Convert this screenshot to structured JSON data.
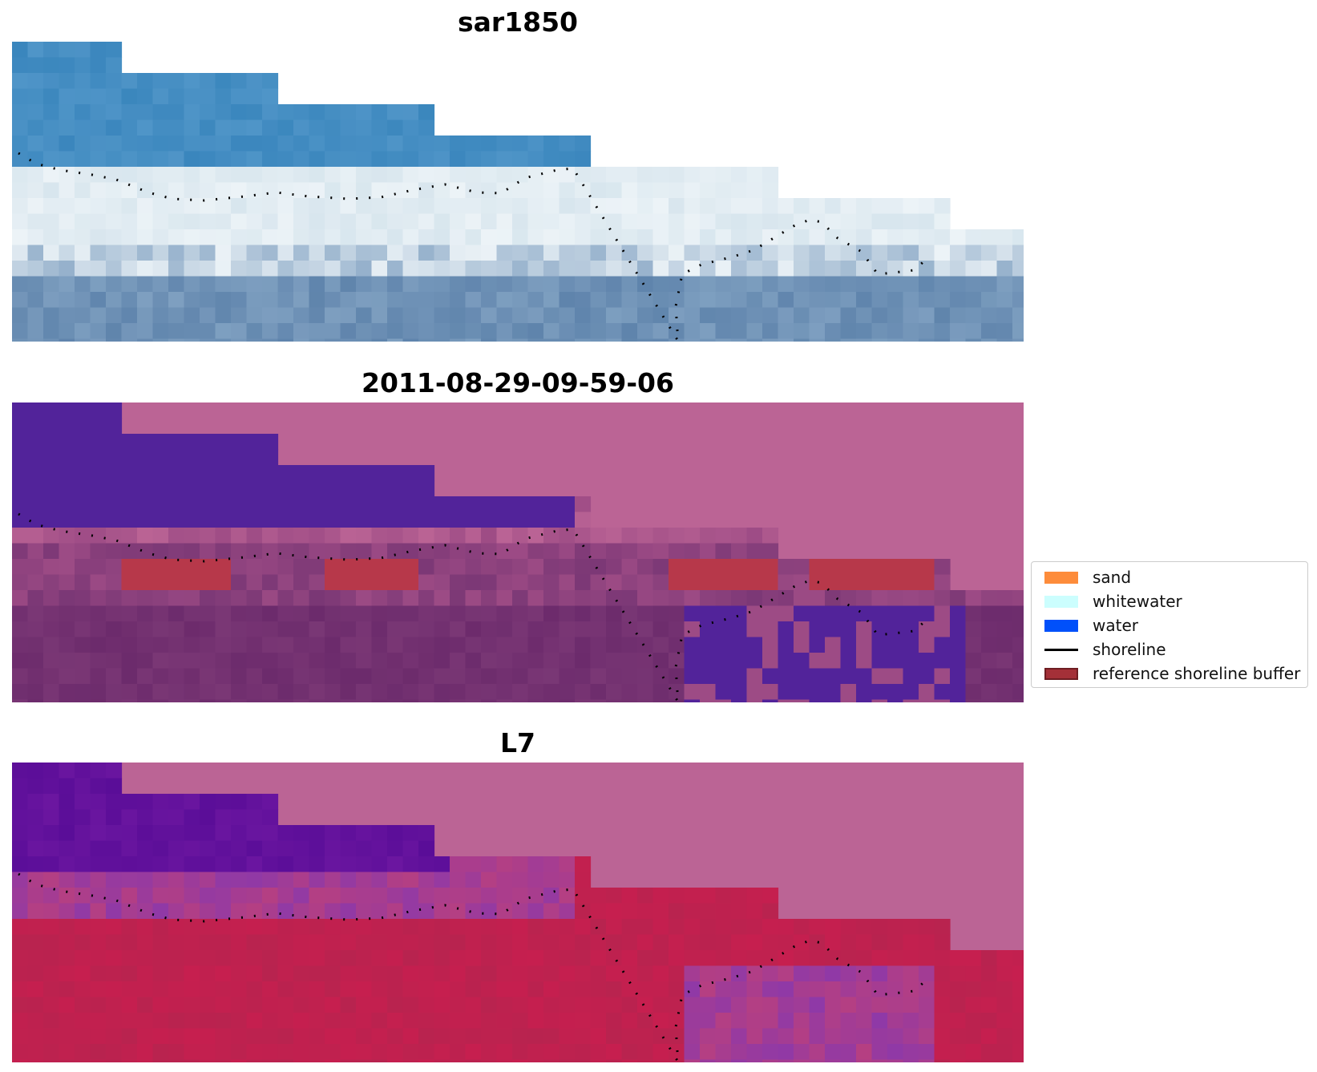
{
  "panels": [
    {
      "title": "sar1850",
      "palette": [
        "#3a86bd",
        "#5e9fcf",
        "#d8e6ee",
        "#ecf3f7",
        "#7e9fc0",
        "#5f84ac"
      ]
    },
    {
      "title": "2011-08-29-09-59-06",
      "palette": [
        "#52239a",
        "#bb6495",
        "#b7384a",
        "#9d4b85",
        "#7a3775",
        "#6c2b6c"
      ]
    },
    {
      "title": "L7",
      "palette": [
        "#6b16a0",
        "#bb6495",
        "#c61f4f",
        "#b53f82",
        "#8f39a7",
        "#b8234f"
      ]
    }
  ],
  "legend": {
    "items": [
      {
        "label": "sand",
        "color": "#fd8c3b",
        "kind": "patch"
      },
      {
        "label": "whitewater",
        "color": "#ccfefe",
        "kind": "patch"
      },
      {
        "label": "water",
        "color": "#0050fa",
        "kind": "patch"
      },
      {
        "label": "shoreline",
        "color": "#000000",
        "kind": "line"
      },
      {
        "label": "reference shoreline buffer",
        "color": "#a43038",
        "kind": "patch"
      }
    ]
  }
}
